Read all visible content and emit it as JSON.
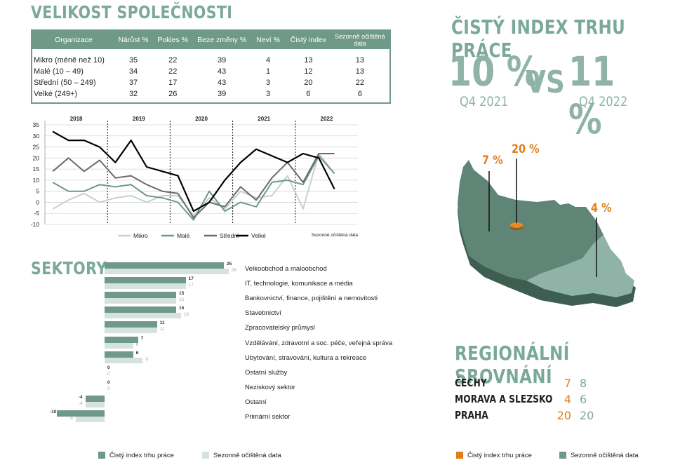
{
  "headings": {
    "company_size": "VELIKOST SPOLEČNOSTI",
    "sectors": "SEKTORY",
    "net_index": "ČISTÝ INDEX TRHU PRÁCE",
    "regional": "REGIONÁLNÍ SROVNÁNÍ"
  },
  "size_table": {
    "headers": [
      "Organizace",
      "Nárůst %",
      "Pokles %",
      "Beze změny %",
      "Neví %",
      "Čistý index",
      "Sezonně očištěná data"
    ],
    "rows": [
      [
        "Mikro (méně než 10)",
        "35",
        "22",
        "39",
        "4",
        "13",
        "13"
      ],
      [
        "Malé (10 – 49)",
        "34",
        "22",
        "43",
        "1",
        "12",
        "13"
      ],
      [
        "Střední (50 – 249)",
        "37",
        "17",
        "43",
        "3",
        "20",
        "22"
      ],
      [
        "Velké (249+)",
        "32",
        "26",
        "39",
        "3",
        "6",
        "6"
      ]
    ]
  },
  "comparison": {
    "left_value": "10 %",
    "left_period": "Q4 2021",
    "vs": "VS",
    "right_value": "11 %",
    "right_period": "Q4 2022"
  },
  "map_labels": {
    "cechy": "7 %",
    "praha": "20 %",
    "morava": "4 %"
  },
  "regional_table": [
    {
      "name": "ČECHY",
      "a": "7",
      "b": "8"
    },
    {
      "name": "MORAVA A SLEZSKO",
      "a": "4",
      "b": "6"
    },
    {
      "name": "PRAHA",
      "a": "20",
      "b": "20"
    }
  ],
  "legends": {
    "sector_a": "Čistý index trhu práce",
    "sector_b": "Sezonně očištěná data",
    "regional_a": "Čistý index trhu práce",
    "regional_b": "Sezonně očištěná data"
  },
  "colors": {
    "teal": "#6f9989",
    "light_teal": "#d6e2dd",
    "orange": "#e07f1c",
    "heading": "#7aa89a"
  },
  "chart_data": [
    {
      "type": "line",
      "year_labels": [
        "2018",
        "2019",
        "2020",
        "2021",
        "2022"
      ],
      "ylim": [
        -10,
        35
      ],
      "yticks": [
        -10,
        -5,
        0,
        5,
        10,
        15,
        20,
        25,
        30,
        35
      ],
      "note": "Sezonně očištěná data",
      "x": [
        "2018 Q1",
        "2018 Q2",
        "2018 Q3",
        "2018 Q4",
        "2019 Q1",
        "2019 Q2",
        "2019 Q3",
        "2019 Q4",
        "2020 Q1",
        "2020 Q2",
        "2020 Q3",
        "2020 Q4",
        "2021 Q1",
        "2021 Q2",
        "2021 Q3",
        "2021 Q4",
        "2022 Q1",
        "2022 Q2",
        "2022 Q3",
        "2022 Q4"
      ],
      "series": [
        {
          "name": "Mikro",
          "color": "#c5d2cc",
          "width": 2,
          "values": [
            -3,
            1,
            4,
            0,
            2,
            3,
            0,
            3,
            3,
            -6,
            2,
            -3,
            5,
            2,
            3,
            12,
            -3,
            22,
            13,
            null
          ]
        },
        {
          "name": "Malé",
          "color": "#6f9989",
          "width": 2,
          "values": [
            9,
            5,
            5,
            8,
            7,
            8,
            3,
            2,
            0,
            -8,
            5,
            -4,
            0,
            -2,
            9,
            10,
            8,
            21,
            13,
            null
          ]
        },
        {
          "name": "Střední",
          "color": "#6b6b6b",
          "width": 2,
          "values": [
            14,
            20,
            14,
            19,
            11,
            12,
            8,
            5,
            4,
            -7,
            0,
            -2,
            7,
            1,
            11,
            18,
            9,
            22,
            22,
            null
          ]
        },
        {
          "name": "Velké",
          "color": "#000000",
          "width": 2.2,
          "values": [
            32,
            28,
            28,
            25,
            18,
            28,
            16,
            14,
            12,
            -4,
            0,
            10,
            18,
            24,
            21,
            18,
            22,
            20,
            6,
            null
          ]
        }
      ]
    },
    {
      "type": "bar",
      "categories": [
        "Velkoobchod a maloobchod",
        "IT, technologie, komunikace a média",
        "Bankovnictví, finance, pojištění a nemovitosti",
        "Stavebnictví",
        "Zpracovatelský průmysl",
        "Vzdělávání, zdravotní a soc. péče, veřejná správa",
        "Ubytování, stravování, kultura a rekreace",
        "Ostatní služby",
        "Neziskový sektor",
        "Ostatní",
        "Primární sektor"
      ],
      "series": [
        {
          "name": "Čistý index trhu práce",
          "values": [
            25,
            17,
            15,
            15,
            11,
            7,
            6,
            0,
            0,
            -4,
            -10
          ]
        },
        {
          "name": "Sezonně očištěná data",
          "values": [
            26,
            17,
            15,
            16,
            11,
            6,
            8,
            0,
            0,
            -4,
            -6
          ]
        }
      ]
    }
  ]
}
